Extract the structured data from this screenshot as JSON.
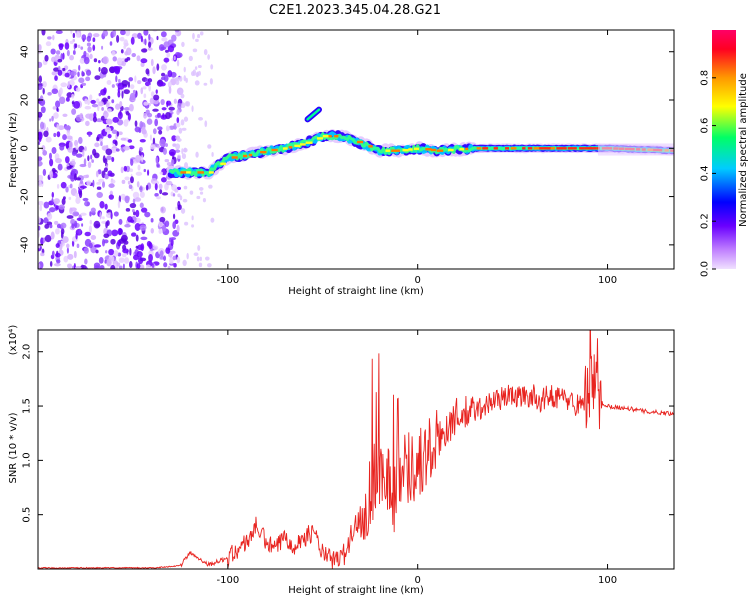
{
  "title": "C2E1.2023.345.04.28.G21",
  "chart_data": [
    {
      "type": "heatmap",
      "xlabel": "Height of straight line (km)",
      "ylabel": "Frequency (Hz)",
      "xlim": [
        -200,
        135
      ],
      "ylim": [
        -50,
        49
      ],
      "x_ticks": [
        -100,
        0,
        100
      ],
      "y_ticks": [
        40,
        20,
        0,
        -20,
        -40
      ],
      "colorbar": {
        "label": "Normalized spectral amplitude",
        "range": [
          0,
          1
        ],
        "ticks": [
          "0.0",
          "0.2",
          "0.4",
          "0.6",
          "0.8"
        ],
        "colormap": [
          "#dcb4ff",
          "#6a00ff",
          "#0000ff",
          "#00ccff",
          "#00ff66",
          "#ffff00",
          "#ff8800",
          "#ff0033"
        ]
      },
      "noise_region_x": [
        -200,
        -130
      ],
      "frequency_track": {
        "x": [
          -130,
          -120,
          -110,
          -100,
          -90,
          -80,
          -70,
          -60,
          -50,
          -40,
          -30,
          -20,
          -10,
          0,
          10,
          30,
          60,
          90,
          100,
          135
        ],
        "y": [
          -10,
          -10,
          -10,
          -4,
          -3,
          -1,
          0,
          2,
          5,
          5,
          2,
          -1,
          -1,
          0,
          -1,
          0,
          0,
          0,
          0,
          -1
        ]
      }
    },
    {
      "type": "line",
      "xlabel": "Height of straight line (km)",
      "ylabel": "SNR (10 * v/v)",
      "ylabel_scale": "(x10⁴)",
      "xlim": [
        -200,
        135
      ],
      "ylim": [
        0,
        2.2
      ],
      "x_ticks": [
        -100,
        0,
        100
      ],
      "y_ticks": [
        0.5,
        1.0,
        1.5,
        2.0
      ],
      "y_tick_labels": [
        "0.5",
        "1.0",
        "1.5",
        "2.0"
      ],
      "color": "#e8231f",
      "series": [
        {
          "x": [
            -200,
            -180,
            -160,
            -140,
            -125,
            -120,
            -110,
            -100,
            -90,
            -85,
            -80,
            -75,
            -70,
            -65,
            -60,
            -55,
            -50,
            -45,
            -40,
            -35,
            -30,
            -25,
            -22,
            -18,
            -15,
            -12,
            -10,
            -5,
            0,
            5,
            10,
            15,
            20,
            25,
            30,
            35,
            40,
            45,
            50,
            55,
            60,
            65,
            70,
            75,
            80,
            85,
            90,
            92,
            95,
            100,
            110,
            120,
            135
          ],
          "y": [
            0.01,
            0.01,
            0.01,
            0.01,
            0.03,
            0.15,
            0.04,
            0.1,
            0.25,
            0.4,
            0.25,
            0.18,
            0.3,
            0.22,
            0.28,
            0.35,
            0.14,
            0.08,
            0.1,
            0.3,
            0.5,
            0.7,
            0.85,
            0.95,
            0.8,
            0.65,
            0.9,
            0.95,
            0.95,
            1.05,
            1.15,
            1.3,
            1.4,
            1.42,
            1.45,
            1.5,
            1.55,
            1.58,
            1.6,
            1.58,
            1.6,
            1.55,
            1.6,
            1.58,
            1.55,
            1.5,
            1.6,
            1.7,
            1.55,
            1.5,
            1.48,
            1.45,
            1.43
          ]
        }
      ]
    }
  ]
}
